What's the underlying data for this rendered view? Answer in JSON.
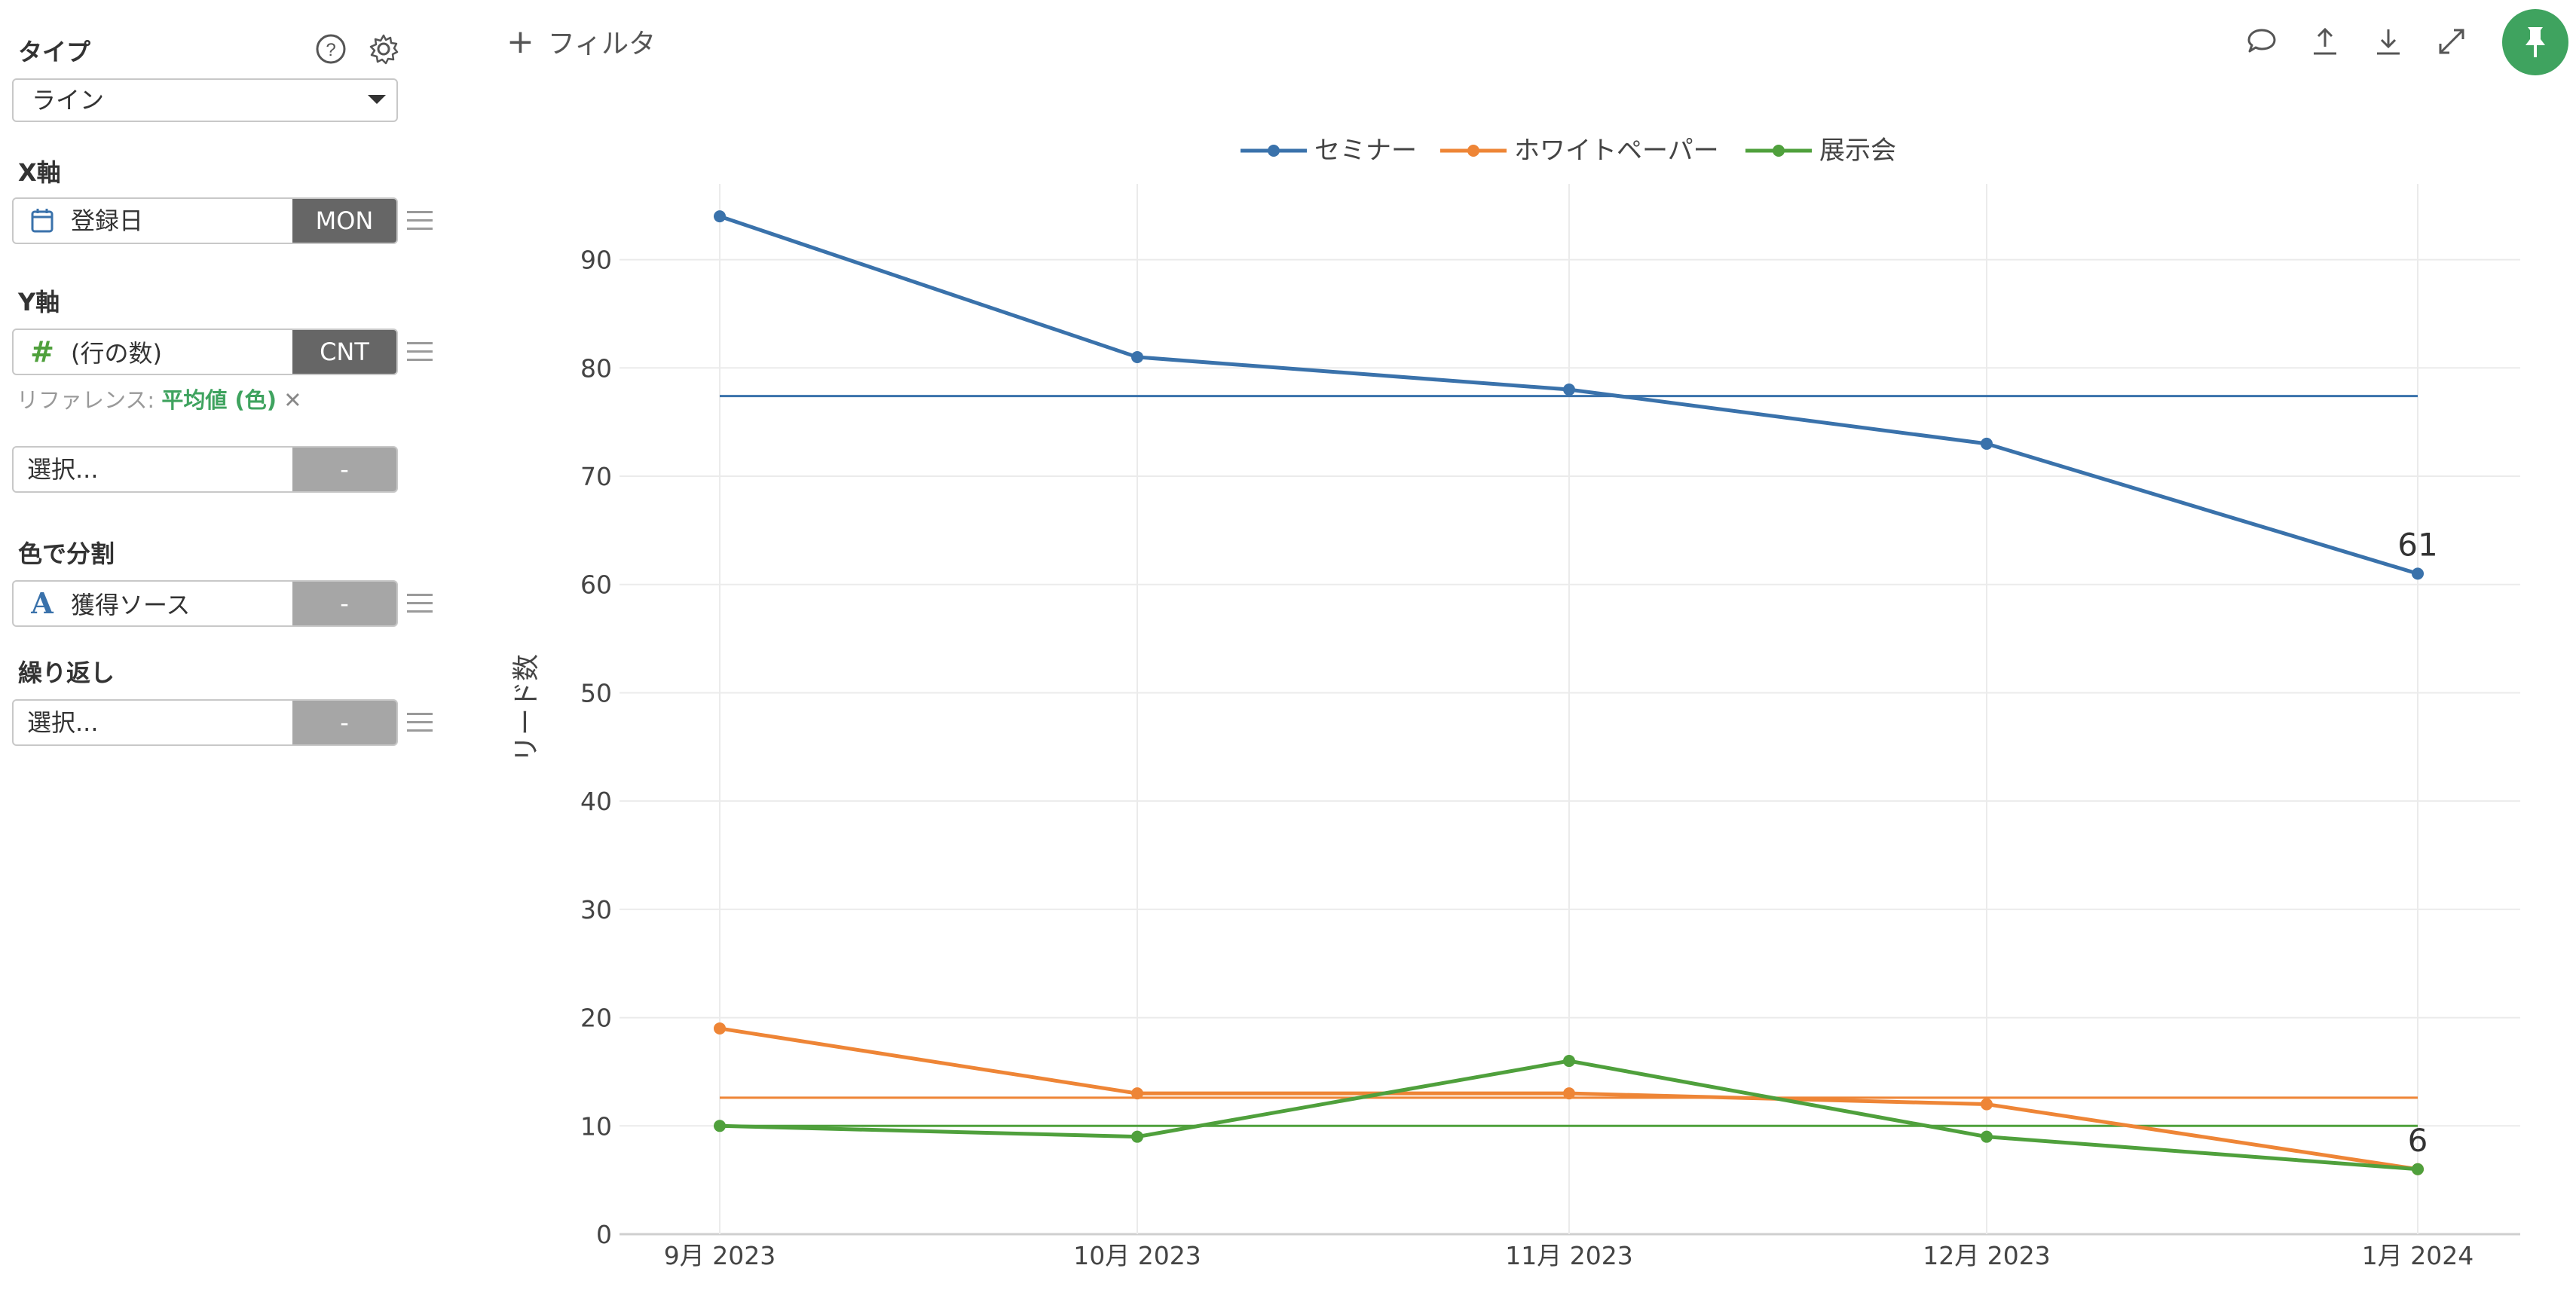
{
  "sidebar": {
    "type_label": "タイプ",
    "type_value": "ライン",
    "x_label": "X軸",
    "x_field": "登録日",
    "x_agg": "MON",
    "y_label": "Y軸",
    "y_field": "(行の数)",
    "y_agg": "CNT",
    "ref_prefix": "リファレンス:",
    "ref_value": "平均値 (色)",
    "ref_remove": "✕",
    "extra_placeholder": "選択...",
    "extra_agg": "-",
    "color_label": "色で分割",
    "color_field": "獲得ソース",
    "color_agg": "-",
    "repeat_label": "繰り返し",
    "repeat_placeholder": "選択...",
    "repeat_agg": "-",
    "icons": {
      "help": "help-icon",
      "settings": "gear-icon",
      "calendar": "calendar-icon",
      "number": "hash-icon",
      "text": "text-type-icon",
      "dropdown": "caret-down-icon"
    }
  },
  "toolbar": {
    "filter_label": "フィルタ",
    "icons": [
      "comment-icon",
      "upload-icon",
      "download-icon",
      "expand-icon",
      "pin-icon"
    ],
    "pin_color": "#3fa35f"
  },
  "chart_data": {
    "type": "line",
    "categories": [
      "9月 2023",
      "10月 2023",
      "11月 2023",
      "12月 2023",
      "1月 2024"
    ],
    "series": [
      {
        "name": "セミナー",
        "color": "#3a72ab",
        "values": [
          94,
          81,
          78,
          73,
          61
        ],
        "average": 77.4,
        "end_label": "61"
      },
      {
        "name": "ホワイトペーパー",
        "color": "#ee8536",
        "values": [
          19,
          13,
          13,
          12,
          6
        ],
        "average": 12.6,
        "end_label": ""
      },
      {
        "name": "展示会",
        "color": "#4fa03c",
        "values": [
          10,
          9,
          16,
          9,
          6
        ],
        "average": 10,
        "end_label": "6"
      }
    ],
    "ylabel": "リード数",
    "xlabel": "",
    "ylim": [
      0,
      97
    ],
    "yticks": [
      0,
      10,
      20,
      30,
      40,
      50,
      60,
      70,
      80,
      90
    ],
    "grid": true,
    "legend_position": "top-center"
  }
}
